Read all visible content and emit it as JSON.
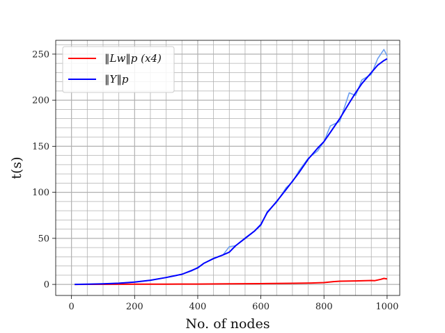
{
  "chart_data": {
    "type": "line",
    "xlabel": "No. of nodes",
    "ylabel": "t(s)",
    "xlim": [
      -50,
      1040
    ],
    "ylim": [
      -12,
      265
    ],
    "xticks": [
      0,
      200,
      400,
      600,
      800,
      1000
    ],
    "xtick_labels": [
      "0",
      "200",
      "400",
      "600",
      "800",
      "1000"
    ],
    "yticks": [
      0,
      50,
      100,
      150,
      200,
      250
    ],
    "ytick_labels": [
      "0",
      "50",
      "100",
      "150",
      "200",
      "250"
    ],
    "grid": true,
    "legend_position": "top-left",
    "series": [
      {
        "name": "‖L_w‖_p (x4)",
        "legend_label": "‖Lw‖p (x4)",
        "color": "#ff0000",
        "x": [
          10,
          100,
          200,
          300,
          400,
          500,
          600,
          700,
          760,
          800,
          830,
          850,
          900,
          930,
          950,
          960,
          980,
          990,
          1000
        ],
        "y": [
          0,
          0.1,
          0.2,
          0.3,
          0.4,
          0.6,
          0.8,
          1.2,
          1.5,
          2.0,
          3.0,
          3.5,
          3.8,
          4.0,
          4.2,
          4.0,
          5.5,
          6.5,
          6.0
        ]
      },
      {
        "name": "‖Y‖_p",
        "legend_label": "‖Y‖p",
        "color": "#0000ff",
        "raw_color": "#6a9ef0",
        "x": [
          10,
          50,
          100,
          150,
          200,
          250,
          300,
          350,
          380,
          400,
          420,
          450,
          480,
          500,
          520,
          550,
          580,
          600,
          620,
          650,
          680,
          700,
          720,
          750,
          780,
          800,
          820,
          850,
          880,
          900,
          920,
          950,
          970,
          990,
          1000
        ],
        "y": [
          0,
          0.2,
          0.6,
          1.3,
          2.5,
          4.5,
          7.5,
          11,
          15,
          18,
          23,
          28,
          32,
          35,
          42,
          50,
          58,
          65,
          78,
          90,
          103,
          112,
          121,
          136,
          148,
          155,
          165,
          180,
          197,
          208,
          218,
          230,
          238,
          243,
          245
        ],
        "raw_y": [
          0,
          0.2,
          0.6,
          1.3,
          2.6,
          4.4,
          7.6,
          11,
          14.5,
          18.5,
          23,
          28.5,
          32,
          41,
          42,
          50.5,
          58,
          64,
          79,
          89,
          105,
          111,
          123,
          137,
          145,
          155,
          172,
          177,
          208,
          205,
          222,
          228,
          245,
          255,
          248
        ]
      }
    ]
  }
}
